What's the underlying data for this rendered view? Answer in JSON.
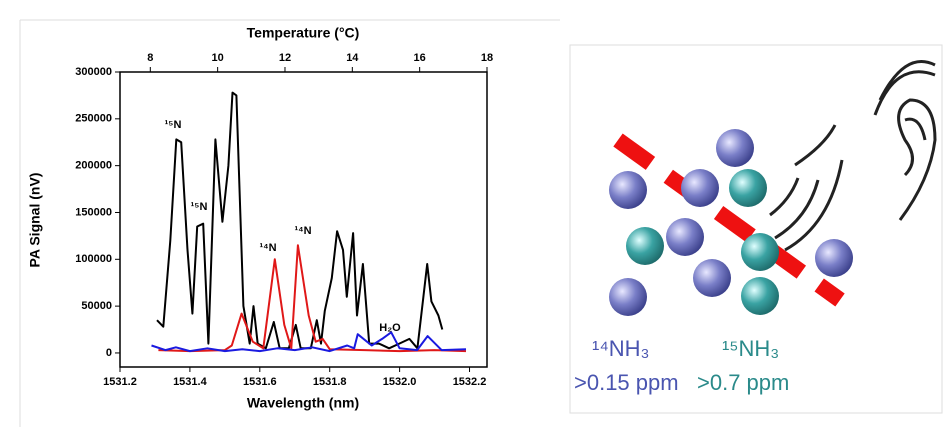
{
  "chart_data": {
    "type": "line",
    "xlabel": "Wavelength (nm)",
    "ylabel": "PA Signal (nV)",
    "x2label": "Temperature (°C)",
    "xlim": [
      1531.2,
      1532.25
    ],
    "xticks": [
      1531.2,
      1531.4,
      1531.6,
      1531.8,
      {
        "value": 1532,
        "label": "1532.0"
      },
      1532.2
    ],
    "x2lim": [
      7.1,
      18
    ],
    "x2ticks": [
      8,
      10,
      12,
      14,
      16,
      18
    ],
    "ylim": [
      -15000,
      300000
    ],
    "yticks": [
      0,
      50000,
      100000,
      150000,
      200000,
      250000,
      300000
    ],
    "annotations": [
      "¹⁵N",
      "¹⁵N",
      "¹⁴N",
      "¹⁴N",
      "H₂O"
    ],
    "series": [
      {
        "color": "#000000",
        "x": [
          1531.306,
          1531.324,
          1531.344,
          1531.361,
          1531.375,
          1531.393,
          1531.407,
          1531.421,
          1531.438,
          1531.453,
          1531.473,
          1531.493,
          1531.51,
          1531.522,
          1531.533,
          1531.553,
          1531.571,
          1531.582,
          1531.594,
          1531.617,
          1531.64,
          1531.657,
          1531.683,
          1531.703,
          1531.717,
          1531.746,
          1531.763,
          1531.775,
          1531.786,
          1531.806,
          1531.821,
          1531.838,
          1531.849,
          1531.867,
          1531.878,
          1531.895,
          1531.913,
          1531.941,
          1531.97,
          1531.999,
          1532.028,
          1532.051,
          1532.068,
          1532.079,
          1532.091,
          1532.111,
          1532.122
        ],
        "values": [
          35000,
          28000,
          120000,
          228000,
          225000,
          110000,
          42000,
          135000,
          138000,
          10000,
          228000,
          140000,
          200000,
          278000,
          275000,
          50000,
          10000,
          50000,
          10000,
          5000,
          33000,
          5000,
          5000,
          30000,
          5000,
          5000,
          35000,
          10000,
          45000,
          80000,
          130000,
          110000,
          60000,
          128000,
          40000,
          95000,
          10000,
          10000,
          5000,
          10000,
          15000,
          5000,
          60000,
          95000,
          55000,
          40000,
          25000
        ]
      },
      {
        "color": "#e01818",
        "x": [
          1531.31,
          1531.4,
          1531.5,
          1531.52,
          1531.548,
          1531.58,
          1531.61,
          1531.643,
          1531.67,
          1531.69,
          1531.709,
          1531.74,
          1531.76,
          1531.78,
          1531.8,
          1531.9,
          1532.0,
          1532.1,
          1532.19
        ],
        "values": [
          3000,
          2000,
          3000,
          8000,
          42000,
          12000,
          5000,
          100000,
          30000,
          5000,
          115000,
          40000,
          12000,
          15000,
          4000,
          3000,
          2000,
          3000,
          2000
        ]
      },
      {
        "color": "#1a1ae0",
        "x": [
          1531.29,
          1531.33,
          1531.36,
          1531.4,
          1531.45,
          1531.5,
          1531.55,
          1531.6,
          1531.65,
          1531.7,
          1531.75,
          1531.8,
          1531.85,
          1531.87,
          1531.88,
          1531.92,
          1531.95,
          1531.976,
          1532.0,
          1532.05,
          1532.08,
          1532.12,
          1532.19
        ],
        "values": [
          8000,
          3000,
          6000,
          2000,
          5000,
          2000,
          4000,
          2000,
          5000,
          3000,
          6000,
          2000,
          8000,
          5000,
          20000,
          8000,
          15000,
          22000,
          5000,
          3000,
          18000,
          3000,
          4000
        ]
      }
    ]
  },
  "illustration": {
    "labels": [
      "¹⁴NH₃",
      "¹⁵NH₃",
      ">0.15 ppm",
      ">0.7 ppm"
    ]
  }
}
